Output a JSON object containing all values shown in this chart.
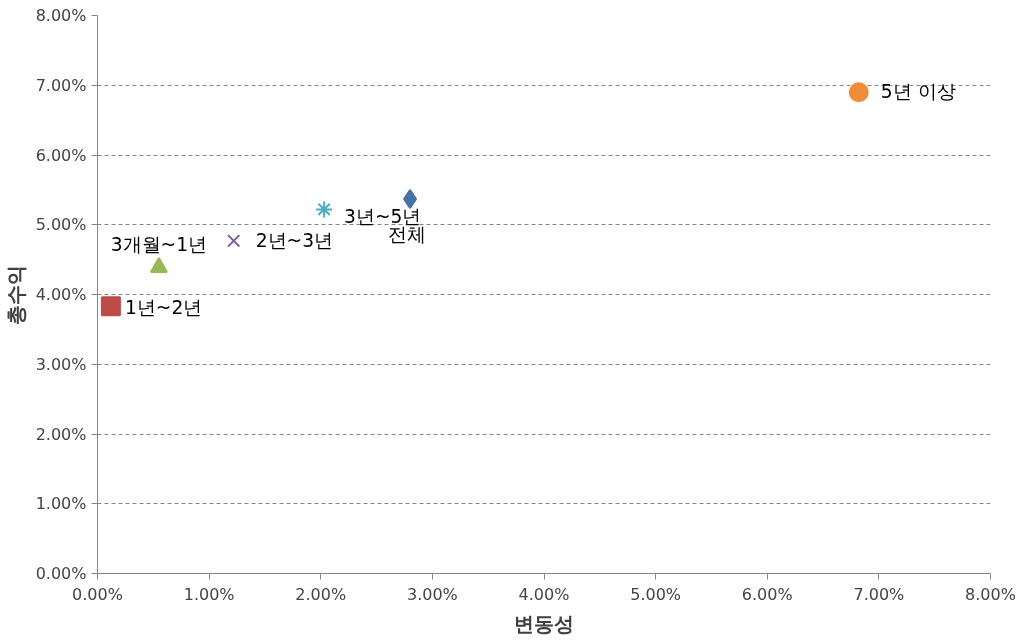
{
  "chart_data": {
    "type": "scatter",
    "xlabel": "변동성",
    "ylabel": "총수익",
    "xlim": [
      0,
      8
    ],
    "xticks": [
      {
        "value": 0,
        "label": "0.00%"
      },
      {
        "value": 1,
        "label": "1.00%"
      },
      {
        "value": 2,
        "label": "2.00%"
      },
      {
        "value": 3,
        "label": "3.00%"
      },
      {
        "value": 4,
        "label": "4.00%"
      },
      {
        "value": 5,
        "label": "5.00%"
      },
      {
        "value": 6,
        "label": "6.00%"
      },
      {
        "value": 7,
        "label": "7.00%"
      },
      {
        "value": 8,
        "label": "8.00%"
      }
    ],
    "ylim": [
      0,
      8
    ],
    "yticks": [
      {
        "value": 0,
        "label": "0.00%"
      },
      {
        "value": 1,
        "label": "1.00%"
      },
      {
        "value": 2,
        "label": "2.00%"
      },
      {
        "value": 3,
        "label": "3.00%"
      },
      {
        "value": 4,
        "label": "4.00%"
      },
      {
        "value": 5,
        "label": "5.00%"
      },
      {
        "value": 6,
        "label": "6.00%"
      },
      {
        "value": 7,
        "label": "7.00%"
      },
      {
        "value": 8,
        "label": "8.00%"
      }
    ],
    "grid": "y",
    "legend": false,
    "series": [
      {
        "name": "1년~2년",
        "color": "#be4b48",
        "marker": "square",
        "x": [
          0.12
        ],
        "values": [
          3.83
        ]
      },
      {
        "name": "3개월~1년",
        "color": "#98b954",
        "marker": "triangle",
        "x": [
          0.55
        ],
        "values": [
          4.39
        ]
      },
      {
        "name": "2년~3년",
        "color": "#7d60a0",
        "marker": "x",
        "x": [
          1.22
        ],
        "values": [
          4.77
        ]
      },
      {
        "name": "3년~5년",
        "color": "#4bacc6",
        "marker": "cross",
        "x": [
          2.03
        ],
        "values": [
          5.22
        ]
      },
      {
        "name": "전체",
        "color": "#4572a7",
        "marker": "diamond",
        "x": [
          2.8
        ],
        "values": [
          5.37
        ]
      },
      {
        "name": "5년 이상",
        "color": "#f08c35",
        "marker": "circle",
        "x": [
          6.82
        ],
        "values": [
          6.9
        ]
      }
    ]
  }
}
